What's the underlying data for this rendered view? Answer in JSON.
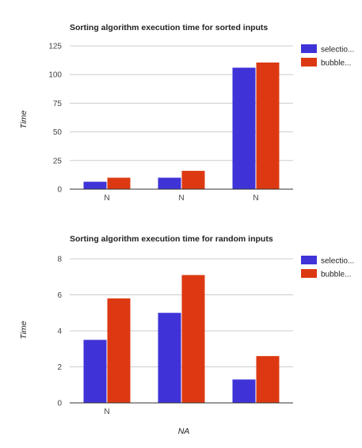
{
  "colors": {
    "selection": "#3f33d8",
    "bubble": "#dc3912",
    "grid": "#cccccc",
    "axis": "#333333"
  },
  "chart_data": [
    {
      "type": "bar",
      "title": "Sorting algorithm execution time for sorted inputs",
      "xlabel": "",
      "ylabel": "Time",
      "categories": [
        "N",
        "N",
        "N"
      ],
      "yticks": [
        "0",
        "25",
        "50",
        "75",
        "100",
        "125"
      ],
      "ylim": [
        0,
        125
      ],
      "grid": true,
      "legend_position": "right",
      "series": [
        {
          "name": "selectio...",
          "values": [
            6.5,
            10,
            106
          ]
        },
        {
          "name": "bubble...",
          "values": [
            10,
            16,
            110.5
          ]
        }
      ]
    },
    {
      "type": "bar",
      "title": "Sorting algorithm execution time for random inputs",
      "xlabel": "NA",
      "ylabel": "Time",
      "categories": [
        "N",
        "",
        ""
      ],
      "yticks": [
        "0",
        "2",
        "4",
        "6",
        "8"
      ],
      "ylim": [
        0,
        8
      ],
      "grid": true,
      "legend_position": "right",
      "series": [
        {
          "name": "selectio...",
          "values": [
            3.5,
            5,
            1.3
          ]
        },
        {
          "name": "bubble...",
          "values": [
            5.8,
            7.1,
            2.6
          ]
        }
      ]
    }
  ]
}
